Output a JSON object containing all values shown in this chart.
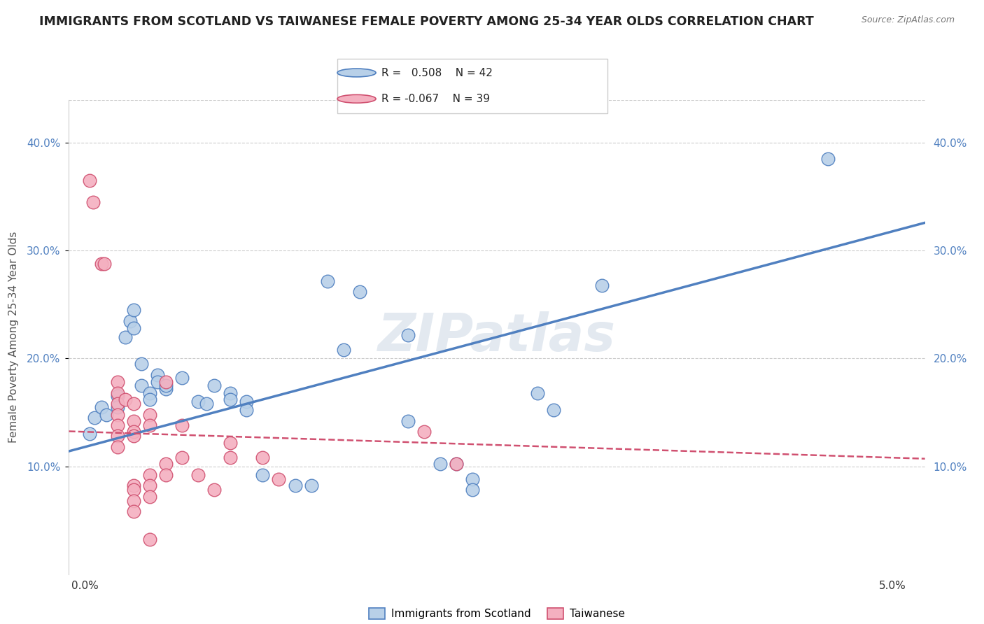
{
  "title": "IMMIGRANTS FROM SCOTLAND VS TAIWANESE FEMALE POVERTY AMONG 25-34 YEAR OLDS CORRELATION CHART",
  "source": "Source: ZipAtlas.com",
  "ylabel": "Female Poverty Among 25-34 Year Olds",
  "ylim": [
    0.0,
    0.44
  ],
  "xlim": [
    -0.001,
    0.052
  ],
  "yticks": [
    0.1,
    0.2,
    0.3,
    0.4
  ],
  "ytick_labels": [
    "10.0%",
    "20.0%",
    "30.0%",
    "40.0%"
  ],
  "xticks": [
    0.0,
    0.01,
    0.02,
    0.03,
    0.04,
    0.05
  ],
  "xtick_labels": [
    "0.0%",
    "",
    "",
    "",
    "",
    "5.0%"
  ],
  "watermark": "ZIPatlas",
  "blue_color": "#b8d0e8",
  "pink_color": "#f4b0c0",
  "line_blue": "#5080c0",
  "line_pink": "#d05070",
  "blue_scatter": [
    [
      0.0003,
      0.13
    ],
    [
      0.0006,
      0.145
    ],
    [
      0.001,
      0.155
    ],
    [
      0.0013,
      0.148
    ],
    [
      0.002,
      0.165
    ],
    [
      0.002,
      0.155
    ],
    [
      0.0025,
      0.22
    ],
    [
      0.0028,
      0.235
    ],
    [
      0.003,
      0.245
    ],
    [
      0.003,
      0.228
    ],
    [
      0.0035,
      0.195
    ],
    [
      0.0035,
      0.175
    ],
    [
      0.004,
      0.168
    ],
    [
      0.004,
      0.162
    ],
    [
      0.0045,
      0.185
    ],
    [
      0.0045,
      0.178
    ],
    [
      0.005,
      0.172
    ],
    [
      0.005,
      0.175
    ],
    [
      0.006,
      0.182
    ],
    [
      0.007,
      0.16
    ],
    [
      0.0075,
      0.158
    ],
    [
      0.008,
      0.175
    ],
    [
      0.009,
      0.168
    ],
    [
      0.009,
      0.162
    ],
    [
      0.01,
      0.16
    ],
    [
      0.01,
      0.152
    ],
    [
      0.011,
      0.092
    ],
    [
      0.013,
      0.082
    ],
    [
      0.014,
      0.082
    ],
    [
      0.015,
      0.272
    ],
    [
      0.016,
      0.208
    ],
    [
      0.017,
      0.262
    ],
    [
      0.02,
      0.222
    ],
    [
      0.02,
      0.142
    ],
    [
      0.022,
      0.102
    ],
    [
      0.023,
      0.102
    ],
    [
      0.024,
      0.088
    ],
    [
      0.024,
      0.078
    ],
    [
      0.028,
      0.168
    ],
    [
      0.029,
      0.152
    ],
    [
      0.032,
      0.268
    ],
    [
      0.046,
      0.385
    ]
  ],
  "pink_scatter": [
    [
      0.0003,
      0.365
    ],
    [
      0.0005,
      0.345
    ],
    [
      0.001,
      0.288
    ],
    [
      0.0012,
      0.288
    ],
    [
      0.002,
      0.178
    ],
    [
      0.002,
      0.168
    ],
    [
      0.002,
      0.158
    ],
    [
      0.002,
      0.148
    ],
    [
      0.002,
      0.138
    ],
    [
      0.002,
      0.128
    ],
    [
      0.002,
      0.118
    ],
    [
      0.0025,
      0.162
    ],
    [
      0.003,
      0.158
    ],
    [
      0.003,
      0.142
    ],
    [
      0.003,
      0.132
    ],
    [
      0.003,
      0.128
    ],
    [
      0.003,
      0.082
    ],
    [
      0.003,
      0.078
    ],
    [
      0.003,
      0.068
    ],
    [
      0.003,
      0.058
    ],
    [
      0.004,
      0.148
    ],
    [
      0.004,
      0.138
    ],
    [
      0.004,
      0.092
    ],
    [
      0.004,
      0.082
    ],
    [
      0.004,
      0.072
    ],
    [
      0.004,
      0.032
    ],
    [
      0.005,
      0.178
    ],
    [
      0.005,
      0.102
    ],
    [
      0.005,
      0.092
    ],
    [
      0.006,
      0.138
    ],
    [
      0.006,
      0.108
    ],
    [
      0.007,
      0.092
    ],
    [
      0.008,
      0.078
    ],
    [
      0.009,
      0.122
    ],
    [
      0.009,
      0.108
    ],
    [
      0.011,
      0.108
    ],
    [
      0.012,
      0.088
    ],
    [
      0.021,
      0.132
    ],
    [
      0.023,
      0.102
    ]
  ],
  "blue_line_x0": 0.0,
  "blue_line_y0": 0.118,
  "blue_line_x1": 0.05,
  "blue_line_y1": 0.318,
  "pink_line_x0": 0.0,
  "pink_line_y0": 0.132,
  "pink_line_x1": 0.05,
  "pink_line_y1": 0.108
}
